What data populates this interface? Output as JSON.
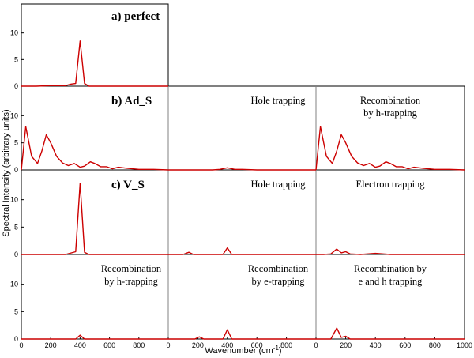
{
  "chart_data": {
    "type": "line",
    "ylabel": "Spectral Intensity (arbitrary units)",
    "xlabel": "Wavenumber (cm",
    "xlabel_sup": "-1",
    "xlabel_close": ")",
    "xlim": [
      0,
      1000
    ],
    "ylim": [
      0,
      15
    ],
    "yticks": [
      0,
      5,
      10
    ],
    "yticks_label": [
      "0",
      "5",
      "10"
    ],
    "xticks_short": [
      0,
      200,
      400,
      600,
      800
    ],
    "xticks_short_label": [
      "0",
      "200",
      "400",
      "600",
      "800"
    ],
    "xticks_last": [
      0,
      200,
      400,
      600,
      800,
      1000
    ],
    "xticks_last_label": [
      "0",
      "200",
      "400",
      "600",
      "800",
      "1000"
    ],
    "row_labels": [
      "a) perfect",
      "b) Ad_S",
      "c) V_S"
    ],
    "panels": [
      {
        "id": "a",
        "row": 0,
        "col": 0,
        "annotation": [],
        "x": [
          0,
          100,
          200,
          300,
          340,
          370,
          400,
          430,
          460,
          500,
          600,
          1000
        ],
        "y": [
          0,
          0,
          0.1,
          0.1,
          0.4,
          0.5,
          8.5,
          0.5,
          0,
          0,
          0,
          0
        ]
      },
      {
        "id": "b1",
        "row": 1,
        "col": 0,
        "annotation": [],
        "x": [
          0,
          30,
          70,
          110,
          140,
          170,
          200,
          240,
          280,
          320,
          360,
          400,
          430,
          470,
          500,
          540,
          580,
          620,
          660,
          720,
          800,
          900,
          1000
        ],
        "y": [
          0,
          8,
          2.5,
          1.2,
          3.5,
          6.5,
          5,
          2.5,
          1.3,
          0.8,
          1.2,
          0.5,
          0.7,
          1.5,
          1.2,
          0.6,
          0.6,
          0.2,
          0.5,
          0.3,
          0.1,
          0.1,
          0
        ],
        "domain": [
          0,
          1000
        ]
      },
      {
        "id": "b2",
        "row": 1,
        "col": 1,
        "annotation": [
          "Hole trapping"
        ],
        "x": [
          0,
          100,
          200,
          300,
          350,
          400,
          450,
          500,
          600,
          700,
          800,
          900,
          1000
        ],
        "y": [
          0,
          0,
          0,
          0,
          0.1,
          0.4,
          0.1,
          0.1,
          0,
          0,
          0,
          0,
          0
        ]
      },
      {
        "id": "b3",
        "row": 1,
        "col": 2,
        "annotation": [
          "Recombination",
          "by h-trapping"
        ],
        "x": [
          0,
          30,
          70,
          110,
          140,
          170,
          200,
          240,
          280,
          320,
          360,
          400,
          430,
          470,
          500,
          540,
          580,
          620,
          660,
          720,
          800,
          900,
          1000
        ],
        "y": [
          0,
          8,
          2.5,
          1.2,
          3.5,
          6.5,
          5,
          2.5,
          1.3,
          0.8,
          1.2,
          0.5,
          0.7,
          1.5,
          1.2,
          0.6,
          0.6,
          0.2,
          0.5,
          0.3,
          0.1,
          0.1,
          0
        ]
      },
      {
        "id": "c1",
        "row": 2,
        "col": 0,
        "annotation": [],
        "x": [
          0,
          100,
          200,
          300,
          370,
          400,
          430,
          460,
          500,
          600,
          1000
        ],
        "y": [
          0,
          0,
          0,
          0,
          0.5,
          13,
          0.4,
          0,
          0,
          0,
          0
        ]
      },
      {
        "id": "c2",
        "row": 2,
        "col": 1,
        "annotation": [
          "Hole trapping"
        ],
        "x": [
          0,
          100,
          140,
          170,
          200,
          300,
          370,
          400,
          430,
          500,
          600,
          1000
        ],
        "y": [
          0,
          0,
          0.4,
          0,
          0,
          0,
          0,
          1.2,
          0,
          0,
          0,
          0
        ]
      },
      {
        "id": "c3",
        "row": 2,
        "col": 2,
        "annotation": [
          "Electron trapping"
        ],
        "x": [
          0,
          50,
          100,
          140,
          170,
          200,
          230,
          300,
          400,
          500,
          600,
          1000
        ],
        "y": [
          0,
          0,
          0.1,
          1.0,
          0.3,
          0.5,
          0.1,
          0,
          0.2,
          0,
          0,
          0
        ]
      },
      {
        "id": "d1",
        "row": 3,
        "col": 0,
        "annotation": [
          "Recombination",
          "by h-trapping"
        ],
        "x": [
          0,
          100,
          200,
          300,
          370,
          400,
          430,
          500,
          600,
          1000
        ],
        "y": [
          0,
          0,
          0,
          0,
          0,
          0.7,
          0,
          0,
          0,
          0
        ]
      },
      {
        "id": "d2",
        "row": 3,
        "col": 1,
        "annotation": [
          "Recombination",
          "by e-trapping"
        ],
        "x": [
          0,
          100,
          180,
          210,
          240,
          300,
          370,
          400,
          430,
          500,
          1000
        ],
        "y": [
          0,
          0,
          0,
          0.4,
          0,
          0,
          0,
          1.7,
          0,
          0,
          0
        ]
      },
      {
        "id": "d3",
        "row": 3,
        "col": 2,
        "annotation": [
          "Recombination by",
          "e and h trapping"
        ],
        "x": [
          0,
          50,
          100,
          140,
          170,
          200,
          230,
          300,
          1000
        ],
        "y": [
          0,
          0,
          0,
          2.0,
          0.3,
          0.5,
          0,
          0,
          0
        ]
      }
    ]
  }
}
